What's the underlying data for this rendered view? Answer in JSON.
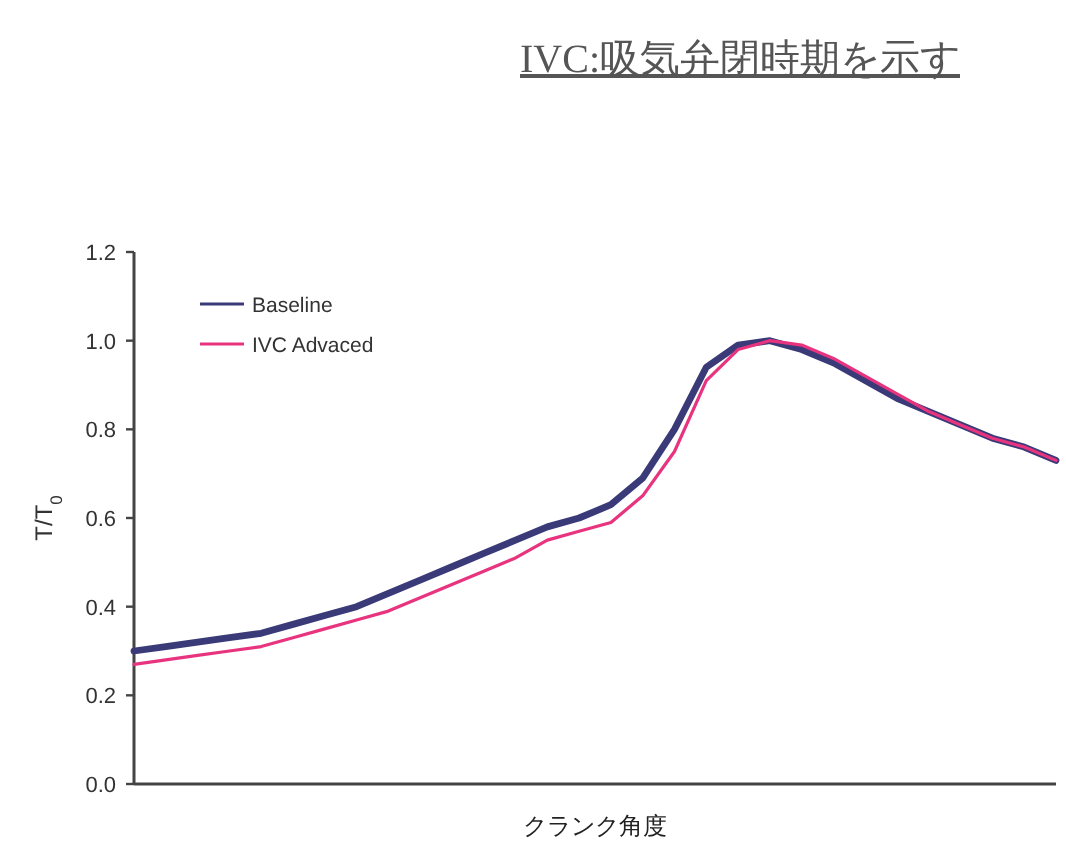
{
  "chart_data": {
    "type": "line",
    "title": "IVC:吸気弁閉時期を示す",
    "xlabel": "クランク角度",
    "ylabel": "T/T$_{0}$",
    "categories": [
      null,
      null,
      null,
      null,
      null,
      null,
      null,
      null,
      null,
      null,
      null,
      null,
      null,
      null,
      null,
      null,
      null,
      null,
      null,
      null,
      null,
      null,
      null,
      null,
      null,
      null,
      null,
      null,
      null,
      null
    ],
    "series": [
      {
        "name": "Baseline",
        "color": "#3a3a78",
        "values": [
          0.3,
          0.31,
          0.32,
          0.33,
          0.34,
          0.36,
          0.38,
          0.4,
          0.43,
          0.46,
          0.49,
          0.52,
          0.55,
          0.58,
          0.6,
          0.63,
          0.69,
          0.8,
          0.94,
          0.99,
          1.0,
          0.98,
          0.95,
          0.91,
          0.87,
          0.84,
          0.81,
          0.78,
          0.76,
          0.73
        ]
      },
      {
        "name": "IVC Advaced",
        "color": "#e8337f",
        "values": [
          0.27,
          0.28,
          0.29,
          0.3,
          0.31,
          0.33,
          0.35,
          0.37,
          0.39,
          0.42,
          0.45,
          0.48,
          0.51,
          0.55,
          0.57,
          0.59,
          0.65,
          0.75,
          0.91,
          0.98,
          1.0,
          0.99,
          0.96,
          0.92,
          0.88,
          0.84,
          0.81,
          0.78,
          0.76,
          0.73
        ]
      }
    ],
    "ylim": [
      0,
      1.2
    ],
    "yticks": [
      {
        "value": 0,
        "label": "0.0"
      },
      0.2,
      0.4,
      0.6,
      0.8,
      {
        "value": 1,
        "label": "1.0"
      },
      1.2
    ],
    "legend": "top left",
    "tick_labels": "y"
  }
}
